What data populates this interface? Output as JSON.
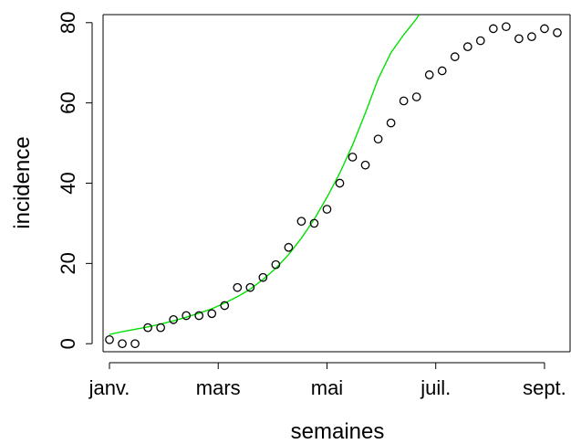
{
  "chart_data": {
    "type": "scatter",
    "xlabel": "semaines",
    "ylabel": "incidence",
    "xlim": [
      -0.5,
      36
    ],
    "ylim": [
      -2,
      82
    ],
    "x_ticks": [
      {
        "value": 0,
        "label": "janv."
      },
      {
        "value": 8.5,
        "label": "mars"
      },
      {
        "value": 17,
        "label": "mai"
      },
      {
        "value": 25.5,
        "label": "juil."
      },
      {
        "value": 34,
        "label": "sept."
      }
    ],
    "y_ticks": [
      0,
      20,
      40,
      60,
      80
    ],
    "grid": false,
    "series": [
      {
        "kind": "points",
        "marker": "open-circle",
        "color": "#000000",
        "x": [
          0,
          1,
          2,
          3,
          4,
          5,
          6,
          7,
          8,
          9,
          10,
          11,
          12,
          13,
          14,
          15,
          16,
          17,
          18,
          19,
          20,
          21,
          22,
          23,
          24,
          25,
          26,
          27,
          28,
          29,
          30,
          31,
          32,
          33,
          34,
          35
        ],
        "y": [
          1,
          0,
          0,
          4,
          4,
          6,
          7,
          7,
          7.5,
          9.5,
          14,
          14,
          16.5,
          19.7,
          24,
          30.5,
          30,
          33.5,
          40,
          46.5,
          44.5,
          51,
          55,
          60.5,
          61.5,
          67,
          68,
          71.5,
          74,
          75.5,
          78.5,
          79,
          76,
          76.5,
          78.5,
          77.5
        ]
      },
      {
        "kind": "fitted-curve",
        "color": "#00e000",
        "x": [
          0,
          1,
          2,
          3,
          4,
          5,
          6,
          7,
          8,
          9,
          10,
          11,
          12,
          13,
          14,
          15,
          16,
          17,
          18,
          19,
          20,
          21,
          22,
          23,
          23.5,
          24,
          24.2
        ],
        "y": [
          2.3,
          3.0,
          3.6,
          4.2,
          4.9,
          5.7,
          6.6,
          7.6,
          8.7,
          10.1,
          11.7,
          13.6,
          16.0,
          18.8,
          22.2,
          26.3,
          31.0,
          36.5,
          42.5,
          49.5,
          57.5,
          66.0,
          72.5,
          77.0,
          79.0,
          81.0,
          82.0
        ]
      }
    ]
  }
}
